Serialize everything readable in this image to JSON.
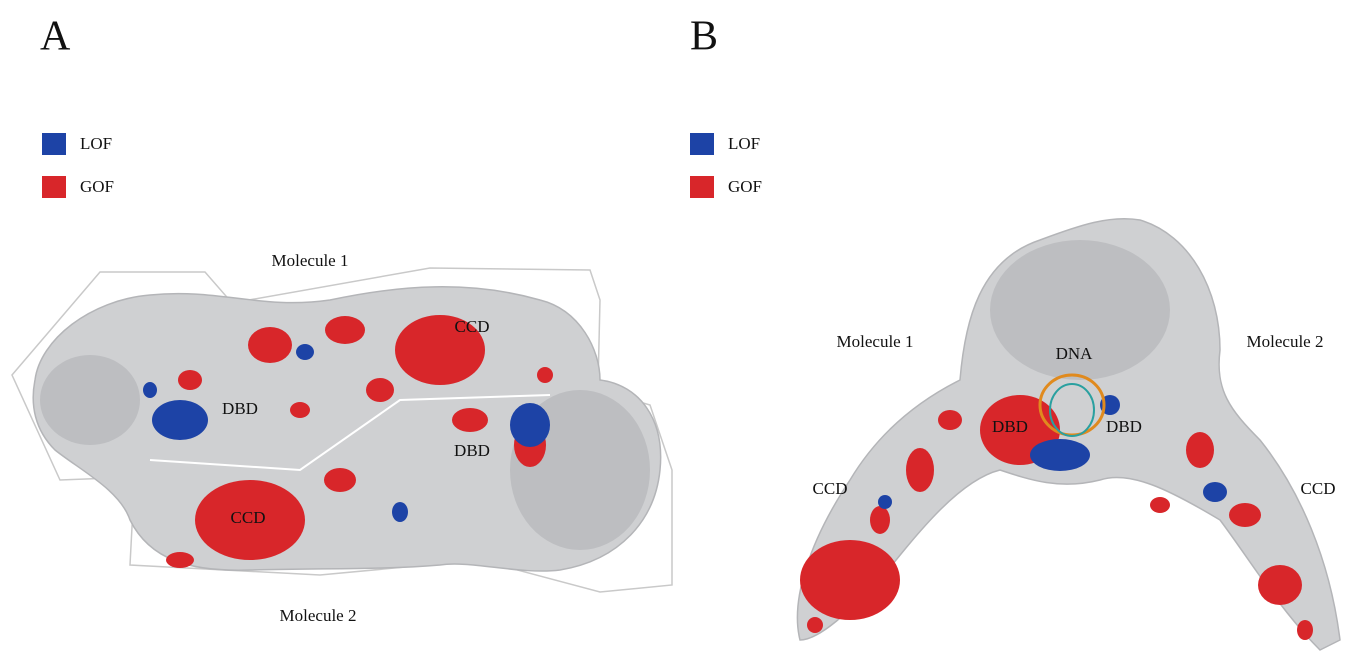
{
  "panels": [
    {
      "label": "A",
      "legend": [
        "LOF",
        "GOF"
      ],
      "annotations": [
        "Molecule 1",
        "CCD",
        "DBD",
        "DBD",
        "CCD",
        "Molecule 2"
      ]
    },
    {
      "label": "B",
      "legend": [
        "LOF",
        "GOF"
      ],
      "annotations": [
        "Molecule 1",
        "DNA",
        "Molecule 2",
        "DBD",
        "DBD",
        "CCD",
        "CCD"
      ]
    }
  ]
}
